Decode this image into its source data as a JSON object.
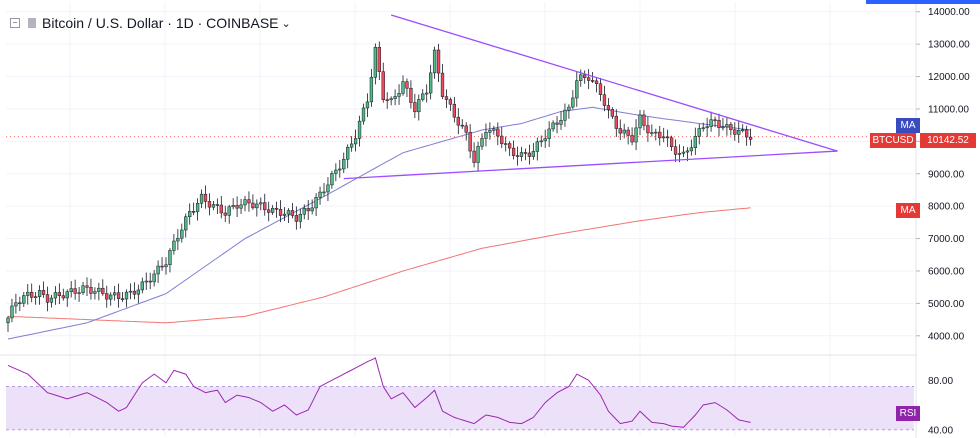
{
  "header": {
    "title": "Bitcoin / U.S. Dollar · 1D · COINBASE"
  },
  "tags": {
    "ma_top": "MA",
    "symbol": "BTCUSD",
    "last_price": "10142.52",
    "ma_bottom": "MA",
    "rsi": "RSI"
  },
  "colors": {
    "up": "#26a69a",
    "down": "#ef5350",
    "candle_up_fill": "#53b987",
    "candle_down_fill": "#eb4d5c",
    "ma_fast": "#7e7fd2",
    "ma_slow": "#ef5350",
    "triangle": "#9c4dff",
    "rsi_line": "#9c27b0",
    "rsi_band": "#eadcf8",
    "ma_tag": "#3a4bc0",
    "price_tag": "#e53935",
    "rsi_tag": "#8e24aa"
  },
  "chart_data": [
    {
      "type": "candlestick",
      "title": "Bitcoin / U.S. Dollar · 1D · COINBASE",
      "y_ticks": [
        4000,
        5000,
        6000,
        7000,
        8000,
        9000,
        10000,
        11000,
        12000,
        13000,
        14000
      ],
      "y_tick_labels": [
        "4000.00",
        "5000.00",
        "6000.00",
        "7000.00",
        "8000.00",
        "9000.00",
        "10000.00",
        "11000.00",
        "12000.00",
        "13000.00",
        "14000.00"
      ],
      "ylim": [
        3500,
        14300
      ],
      "last_price": 10142.52,
      "candles_close_anchors": [
        [
          0,
          4550
        ],
        [
          2,
          5050
        ],
        [
          5,
          5250
        ],
        [
          8,
          5300
        ],
        [
          10,
          5150
        ],
        [
          13,
          5250
        ],
        [
          16,
          5350
        ],
        [
          19,
          5450
        ],
        [
          22,
          5400
        ],
        [
          25,
          5250
        ],
        [
          28,
          5200
        ],
        [
          31,
          5300
        ],
        [
          34,
          5550
        ],
        [
          37,
          5900
        ],
        [
          40,
          6300
        ],
        [
          43,
          7100
        ],
        [
          46,
          7800
        ],
        [
          49,
          8250
        ],
        [
          52,
          8000
        ],
        [
          55,
          7800
        ],
        [
          58,
          8050
        ],
        [
          61,
          8100
        ],
        [
          64,
          8000
        ],
        [
          67,
          7850
        ],
        [
          70,
          7800
        ],
        [
          73,
          7650
        ],
        [
          76,
          7900
        ],
        [
          79,
          8350
        ],
        [
          82,
          8900
        ],
        [
          85,
          9450
        ],
        [
          88,
          10200
        ],
        [
          91,
          11300
        ],
        [
          93,
          12800
        ],
        [
          95,
          11400
        ],
        [
          97,
          11200
        ],
        [
          100,
          11800
        ],
        [
          103,
          11000
        ],
        [
          106,
          11600
        ],
        [
          108,
          12700
        ],
        [
          110,
          11500
        ],
        [
          113,
          10800
        ],
        [
          116,
          10200
        ],
        [
          118,
          9400
        ],
        [
          121,
          10400
        ],
        [
          124,
          10200
        ],
        [
          127,
          9700
        ],
        [
          130,
          9550
        ],
        [
          133,
          9700
        ],
        [
          136,
          10200
        ],
        [
          139,
          10600
        ],
        [
          142,
          11000
        ],
        [
          144,
          11900
        ],
        [
          147,
          12000
        ],
        [
          150,
          11500
        ],
        [
          152,
          10900
        ],
        [
          155,
          10300
        ],
        [
          158,
          10100
        ],
        [
          160,
          10700
        ],
        [
          163,
          10200
        ],
        [
          166,
          10200
        ],
        [
          168,
          9800
        ],
        [
          171,
          9550
        ],
        [
          174,
          10100
        ],
        [
          176,
          10500
        ],
        [
          179,
          10600
        ],
        [
          182,
          10400
        ],
        [
          185,
          10300
        ],
        [
          188,
          10150
        ]
      ],
      "series": [
        {
          "name": "MA",
          "anchors": [
            [
              0,
              3900
            ],
            [
              20,
              4400
            ],
            [
              40,
              5300
            ],
            [
              60,
              7000
            ],
            [
              80,
              8300
            ],
            [
              100,
              9650
            ],
            [
              120,
              10350
            ],
            [
              130,
              10550
            ],
            [
              140,
              10920
            ],
            [
              148,
              11050
            ],
            [
              160,
              10800
            ],
            [
              175,
              10550
            ],
            [
              188,
              10350
            ]
          ]
        },
        {
          "name": "MA",
          "anchors": [
            [
              0,
              4600
            ],
            [
              40,
              4400
            ],
            [
              60,
              4600
            ],
            [
              80,
              5200
            ],
            [
              100,
              6000
            ],
            [
              120,
              6700
            ],
            [
              140,
              7150
            ],
            [
              160,
              7550
            ],
            [
              175,
              7800
            ],
            [
              188,
              7950
            ]
          ]
        }
      ],
      "triangle": {
        "upper": {
          "from": [
            97,
            13900
          ],
          "to": [
            210,
            9700
          ]
        },
        "lower": {
          "from": [
            85,
            8850
          ],
          "to": [
            210,
            9700
          ]
        }
      }
    },
    {
      "type": "line",
      "title": "RSI",
      "y_ticks": [
        40,
        80
      ],
      "y_tick_labels": [
        "40.00",
        "80.00"
      ],
      "ylim": [
        35,
        98
      ],
      "band": [
        40,
        75
      ],
      "rsi_anchors": [
        [
          0,
          92
        ],
        [
          5,
          85
        ],
        [
          10,
          70
        ],
        [
          15,
          65
        ],
        [
          20,
          70
        ],
        [
          25,
          62
        ],
        [
          28,
          55
        ],
        [
          30,
          58
        ],
        [
          34,
          78
        ],
        [
          37,
          85
        ],
        [
          40,
          78
        ],
        [
          42,
          88
        ],
        [
          45,
          85
        ],
        [
          47,
          75
        ],
        [
          50,
          70
        ],
        [
          53,
          72
        ],
        [
          55,
          62
        ],
        [
          58,
          68
        ],
        [
          61,
          66
        ],
        [
          64,
          62
        ],
        [
          67,
          55
        ],
        [
          70,
          60
        ],
        [
          73,
          52
        ],
        [
          76,
          56
        ],
        [
          79,
          75
        ],
        [
          82,
          80
        ],
        [
          85,
          85
        ],
        [
          88,
          90
        ],
        [
          91,
          95
        ],
        [
          93,
          98
        ],
        [
          95,
          75
        ],
        [
          97,
          65
        ],
        [
          100,
          70
        ],
        [
          103,
          58
        ],
        [
          106,
          66
        ],
        [
          108,
          72
        ],
        [
          110,
          55
        ],
        [
          113,
          50
        ],
        [
          116,
          47
        ],
        [
          118,
          45
        ],
        [
          121,
          52
        ],
        [
          124,
          50
        ],
        [
          127,
          46
        ],
        [
          130,
          45
        ],
        [
          133,
          50
        ],
        [
          136,
          62
        ],
        [
          139,
          70
        ],
        [
          142,
          75
        ],
        [
          144,
          85
        ],
        [
          147,
          80
        ],
        [
          150,
          68
        ],
        [
          152,
          55
        ],
        [
          155,
          45
        ],
        [
          158,
          47
        ],
        [
          160,
          55
        ],
        [
          163,
          46
        ],
        [
          166,
          45
        ],
        [
          168,
          43
        ],
        [
          171,
          42
        ],
        [
          174,
          52
        ],
        [
          176,
          60
        ],
        [
          179,
          62
        ],
        [
          182,
          56
        ],
        [
          185,
          48
        ],
        [
          188,
          46
        ]
      ]
    }
  ]
}
